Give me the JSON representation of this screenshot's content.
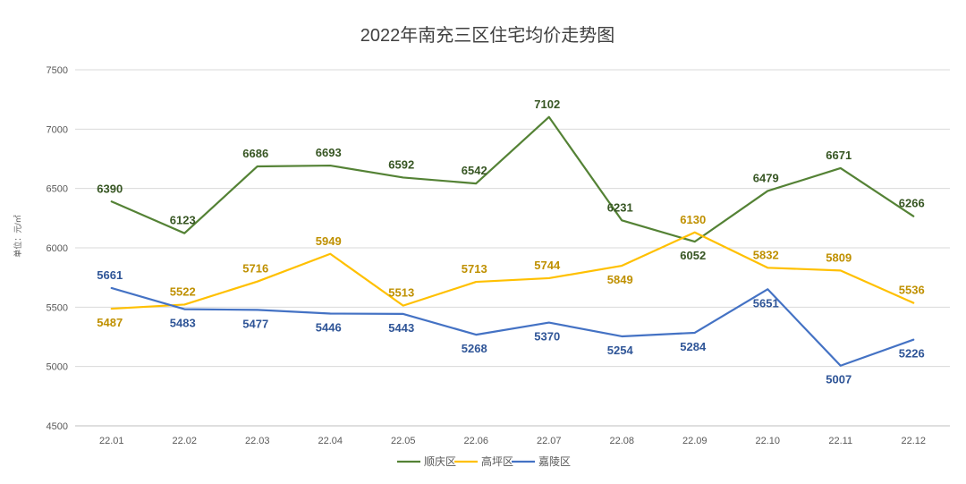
{
  "chart_data": {
    "type": "line",
    "title": "2022年南充三区住宅均价走势图",
    "ylabel": "单位：元/㎡",
    "xlabel": "",
    "categories": [
      "22.01",
      "22.02",
      "22.03",
      "22.04",
      "22.05",
      "22.06",
      "22.07",
      "22.08",
      "22.09",
      "22.10",
      "22.11",
      "22.12"
    ],
    "ylim": [
      4500,
      7500
    ],
    "yticks": [
      4500,
      5000,
      5500,
      6000,
      6500,
      7000,
      7500
    ],
    "grid": true,
    "legend_position": "bottom",
    "series": [
      {
        "name": "顺庆区",
        "color": "#548235",
        "label_color": "#375623",
        "values": [
          6390,
          6123,
          6686,
          6693,
          6592,
          6542,
          7102,
          6231,
          6052,
          6479,
          6671,
          6266
        ]
      },
      {
        "name": "高坪区",
        "color": "#FFC000",
        "label_color": "#BF9000",
        "values": [
          5487,
          5522,
          5716,
          5949,
          5513,
          5713,
          5744,
          5849,
          6130,
          5832,
          5809,
          5536
        ]
      },
      {
        "name": "嘉陵区",
        "color": "#4472C4",
        "label_color": "#2F5597",
        "values": [
          5661,
          5483,
          5477,
          5446,
          5443,
          5268,
          5370,
          5254,
          5284,
          5651,
          5007,
          5226
        ]
      }
    ]
  }
}
